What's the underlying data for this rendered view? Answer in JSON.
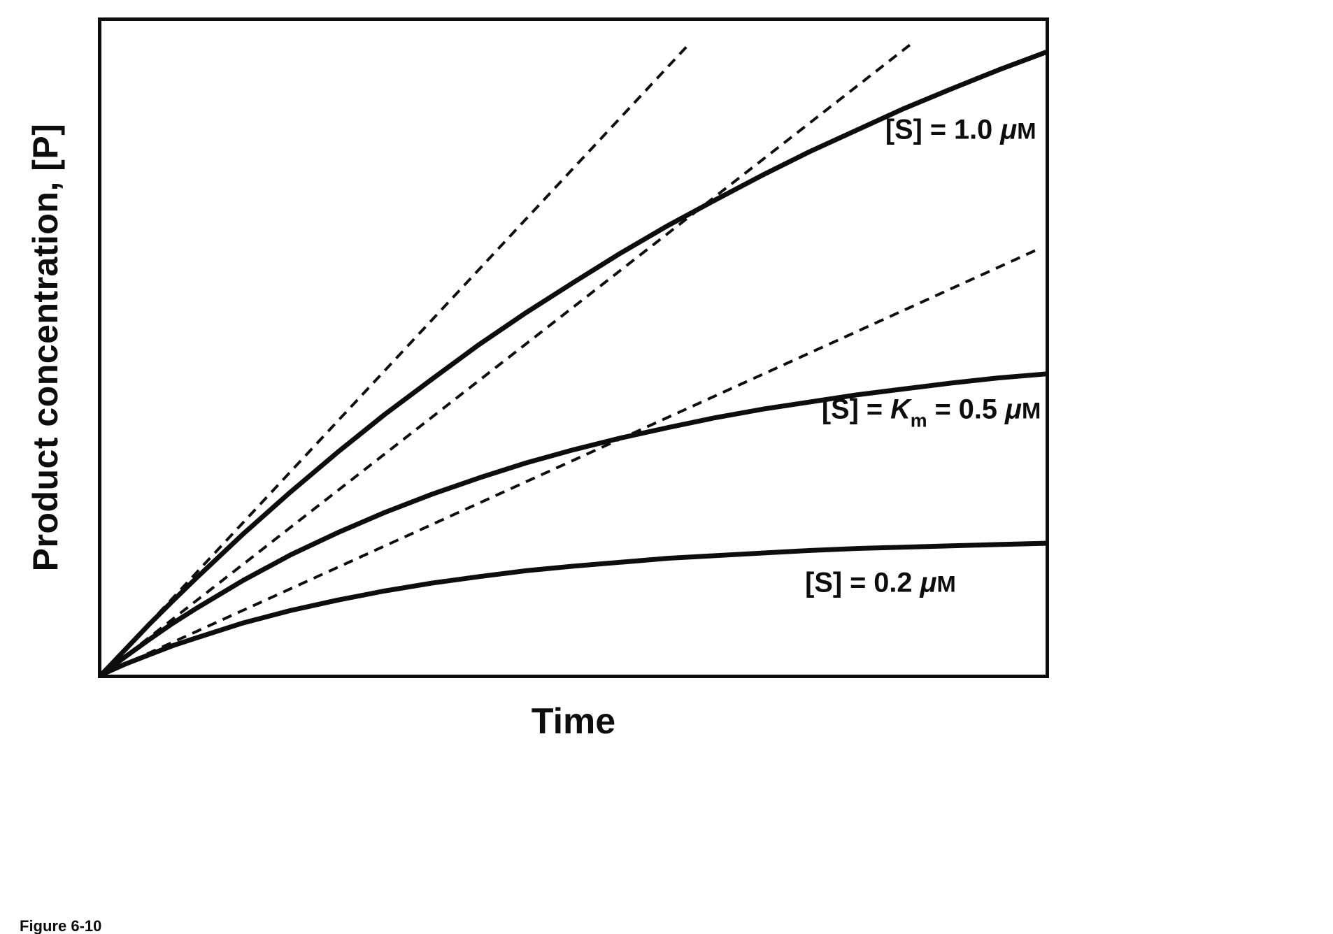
{
  "figure": {
    "caption": "Figure 6-10"
  },
  "chart_data": {
    "type": "line",
    "title": "",
    "xlabel": "Time",
    "ylabel": "Product concentration, [P]",
    "x_range": [
      0,
      1
    ],
    "y_range": [
      0,
      1
    ],
    "grid": false,
    "axes_style": "closed box, no tick marks, no tick labels",
    "background_color": "#ffffff",
    "line_color": "#0d0d0d",
    "styles": {
      "curve_width": 7,
      "tangent_width": 4,
      "tangent_dash": "14 10",
      "label_font_size": 40,
      "label_small_font_size": 33,
      "label_sub_font_size": 27
    },
    "x_normalized": [
      0,
      0.025,
      0.05,
      0.075,
      0.1,
      0.15,
      0.2,
      0.25,
      0.3,
      0.35,
      0.4,
      0.45,
      0.5,
      0.55,
      0.6,
      0.65,
      0.7,
      0.75,
      0.8,
      0.85,
      0.9,
      0.95,
      1.0
    ],
    "series": [
      {
        "name": "[S] = 1.0 uM",
        "substrate_uM": 1.0,
        "initial_slope": 1.55,
        "tangent_x_end": 0.62,
        "values": [
          0,
          0.038,
          0.076,
          0.112,
          0.147,
          0.215,
          0.279,
          0.34,
          0.398,
          0.452,
          0.505,
          0.554,
          0.6,
          0.645,
          0.687,
          0.726,
          0.764,
          0.8,
          0.833,
          0.866,
          0.896,
          0.925,
          0.952
        ],
        "label_anchor": {
          "x": 0.99,
          "y": 0.82
        },
        "label_parts": [
          {
            "s": "plain",
            "t": "[S] = 1.0 "
          },
          {
            "s": "italic",
            "t": "μ"
          },
          {
            "s": "small",
            "t": "M"
          }
        ]
      },
      {
        "name": "[S] = Km = 0.5 uM",
        "substrate_uM": 0.5,
        "km_uM": 0.5,
        "initial_slope": 1.125,
        "tangent_x_end": 0.86,
        "values": [
          0,
          0.027,
          0.053,
          0.078,
          0.101,
          0.144,
          0.183,
          0.217,
          0.248,
          0.276,
          0.301,
          0.324,
          0.344,
          0.362,
          0.378,
          0.393,
          0.406,
          0.417,
          0.428,
          0.437,
          0.446,
          0.454,
          0.46
        ],
        "label_anchor": {
          "x": 0.995,
          "y": 0.392
        },
        "label_parts": [
          {
            "s": "plain",
            "t": "[S] = "
          },
          {
            "s": "italic",
            "t": "K"
          },
          {
            "s": "sub",
            "t": "m"
          },
          {
            "s": "plain",
            "t": " = 0.5 "
          },
          {
            "s": "italic",
            "t": "μ"
          },
          {
            "s": "small",
            "t": "M"
          }
        ]
      },
      {
        "name": "[S] = 0.2 uM",
        "substrate_uM": 0.2,
        "initial_slope": 0.656,
        "tangent_x_end": 0.99,
        "values": [
          0,
          0.016,
          0.03,
          0.044,
          0.056,
          0.079,
          0.098,
          0.114,
          0.128,
          0.14,
          0.15,
          0.159,
          0.166,
          0.172,
          0.178,
          0.182,
          0.186,
          0.19,
          0.193,
          0.195,
          0.197,
          0.199,
          0.201
        ],
        "label_anchor": {
          "x": 0.905,
          "y": 0.127
        },
        "label_parts": [
          {
            "s": "plain",
            "t": "[S] = 0.2 "
          },
          {
            "s": "italic",
            "t": "μ"
          },
          {
            "s": "small",
            "t": "M"
          }
        ]
      }
    ]
  }
}
